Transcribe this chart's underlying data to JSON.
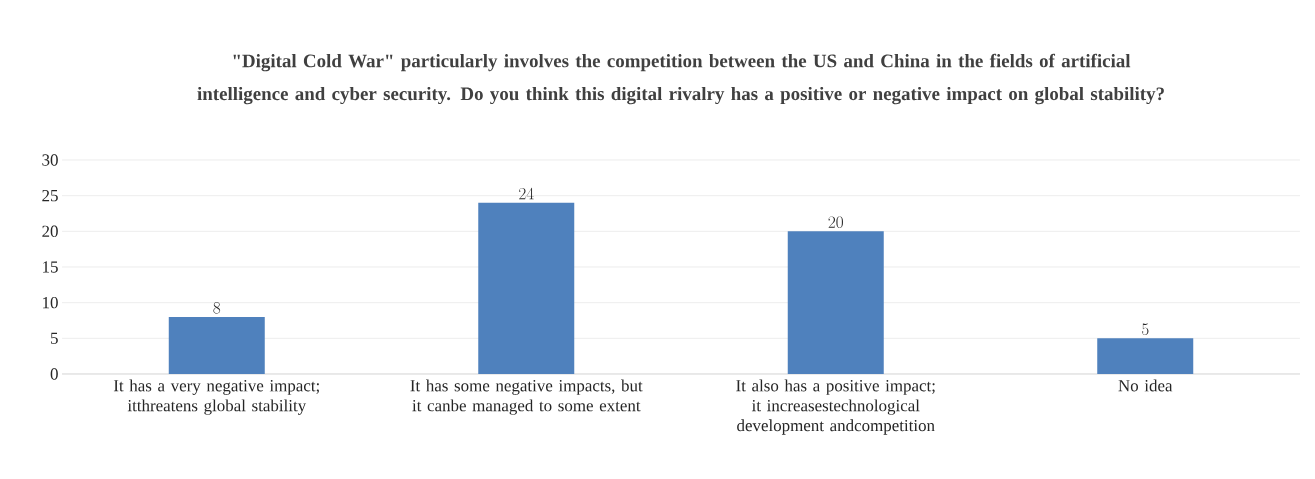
{
  "chart_data": {
    "type": "bar",
    "title": "\"Digital Cold War\" particularly involves the competition between the US and China in the fields of artificial intelligence and cyber security. Do you think this digital rivalry has a positive or negative impact on global stability?",
    "categories": [
      "It has a very negative impact; itthreatens global stability",
      "It has some negative impacts, but it canbe managed to some extent",
      "It also has a positive impact; it increasestechnological development andcompetition",
      "No idea"
    ],
    "values": [
      8,
      24,
      20,
      5
    ],
    "color": "#4f81bd",
    "ylim": [
      0,
      30
    ],
    "yticks": [
      0,
      5,
      10,
      15,
      20,
      25,
      30
    ],
    "grid": "y",
    "data_labels": true
  }
}
